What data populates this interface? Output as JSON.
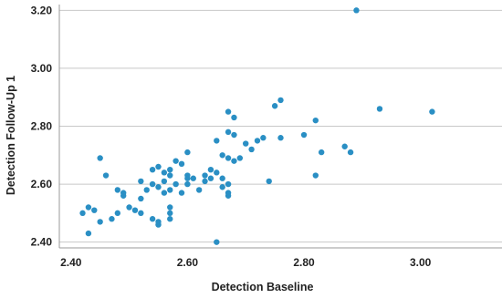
{
  "chart_data": {
    "type": "scatter",
    "title": "",
    "xlabel": "Detection Baseline",
    "ylabel": "Detection Follow-Up 1",
    "xlim": [
      2.38,
      3.14
    ],
    "ylim": [
      2.38,
      3.22
    ],
    "xticks": [
      "2.40",
      "2.60",
      "2.80",
      "3.00"
    ],
    "yticks": [
      "2.40",
      "2.60",
      "2.80",
      "3.00",
      "3.20"
    ],
    "grid": "horizontal",
    "point_color": "#2a8fc4",
    "series": [
      {
        "points": [
          [
            2.42,
            2.5
          ],
          [
            2.43,
            2.52
          ],
          [
            2.43,
            2.43
          ],
          [
            2.44,
            2.51
          ],
          [
            2.45,
            2.47
          ],
          [
            2.45,
            2.69
          ],
          [
            2.46,
            2.63
          ],
          [
            2.47,
            2.48
          ],
          [
            2.48,
            2.58
          ],
          [
            2.48,
            2.5
          ],
          [
            2.49,
            2.56
          ],
          [
            2.49,
            2.57
          ],
          [
            2.5,
            2.52
          ],
          [
            2.51,
            2.51
          ],
          [
            2.52,
            2.61
          ],
          [
            2.52,
            2.5
          ],
          [
            2.52,
            2.55
          ],
          [
            2.53,
            2.58
          ],
          [
            2.54,
            2.65
          ],
          [
            2.54,
            2.6
          ],
          [
            2.54,
            2.48
          ],
          [
            2.55,
            2.46
          ],
          [
            2.55,
            2.66
          ],
          [
            2.55,
            2.59
          ],
          [
            2.55,
            2.47
          ],
          [
            2.56,
            2.61
          ],
          [
            2.56,
            2.57
          ],
          [
            2.56,
            2.64
          ],
          [
            2.57,
            2.48
          ],
          [
            2.57,
            2.5
          ],
          [
            2.57,
            2.52
          ],
          [
            2.57,
            2.58
          ],
          [
            2.57,
            2.63
          ],
          [
            2.57,
            2.65
          ],
          [
            2.58,
            2.6
          ],
          [
            2.58,
            2.68
          ],
          [
            2.59,
            2.57
          ],
          [
            2.59,
            2.67
          ],
          [
            2.6,
            2.62
          ],
          [
            2.6,
            2.63
          ],
          [
            2.6,
            2.6
          ],
          [
            2.6,
            2.71
          ],
          [
            2.61,
            2.62
          ],
          [
            2.62,
            2.58
          ],
          [
            2.63,
            2.63
          ],
          [
            2.63,
            2.61
          ],
          [
            2.64,
            2.65
          ],
          [
            2.64,
            2.62
          ],
          [
            2.65,
            2.75
          ],
          [
            2.65,
            2.64
          ],
          [
            2.65,
            2.4
          ],
          [
            2.66,
            2.59
          ],
          [
            2.66,
            2.62
          ],
          [
            2.66,
            2.7
          ],
          [
            2.67,
            2.56
          ],
          [
            2.67,
            2.57
          ],
          [
            2.67,
            2.6
          ],
          [
            2.67,
            2.69
          ],
          [
            2.67,
            2.78
          ],
          [
            2.67,
            2.85
          ],
          [
            2.68,
            2.83
          ],
          [
            2.68,
            2.77
          ],
          [
            2.68,
            2.68
          ],
          [
            2.69,
            2.69
          ],
          [
            2.7,
            2.74
          ],
          [
            2.71,
            2.72
          ],
          [
            2.72,
            2.75
          ],
          [
            2.73,
            2.76
          ],
          [
            2.74,
            2.61
          ],
          [
            2.75,
            2.87
          ],
          [
            2.76,
            2.76
          ],
          [
            2.76,
            2.89
          ],
          [
            2.8,
            2.77
          ],
          [
            2.82,
            2.63
          ],
          [
            2.82,
            2.82
          ],
          [
            2.83,
            2.71
          ],
          [
            2.87,
            2.73
          ],
          [
            2.88,
            2.71
          ],
          [
            2.89,
            3.2
          ],
          [
            2.93,
            2.86
          ],
          [
            3.02,
            2.85
          ]
        ]
      }
    ]
  }
}
